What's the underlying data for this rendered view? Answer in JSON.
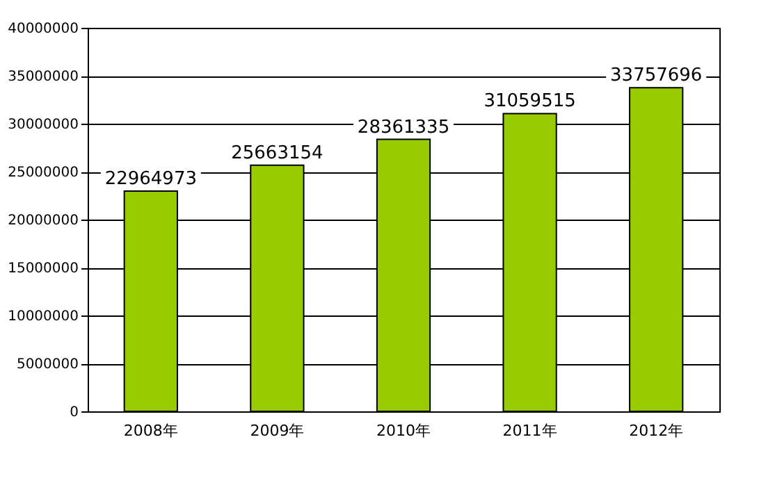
{
  "chart_data": {
    "type": "bar",
    "categories": [
      "2008年",
      "2009年",
      "2010年",
      "2011年",
      "2012年"
    ],
    "values": [
      22964973,
      25663154,
      28361335,
      31059515,
      33757696
    ],
    "color": "#99cc00",
    "ylim": [
      0,
      40000000
    ],
    "yticks": [
      0,
      5000000,
      10000000,
      15000000,
      20000000,
      25000000,
      30000000,
      35000000,
      40000000
    ],
    "grid": "y",
    "data_labels": true
  }
}
